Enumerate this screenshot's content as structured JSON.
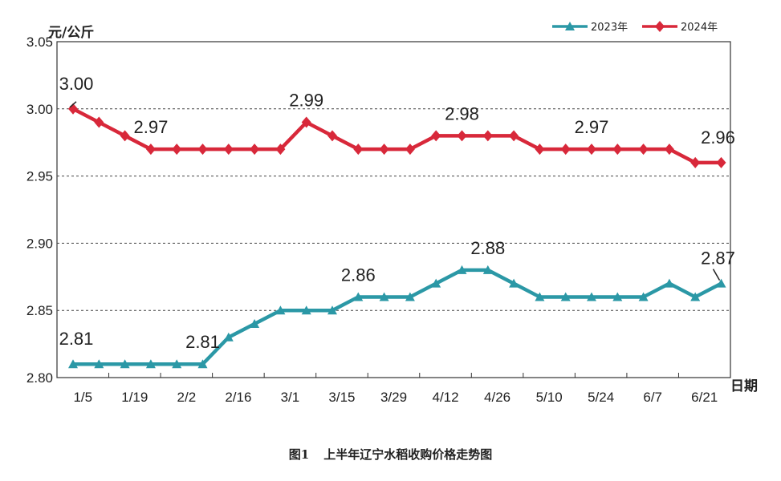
{
  "caption": {
    "number": "图1",
    "title": "上半年辽宁水稻收购价格走势图"
  },
  "chart_data": {
    "type": "line",
    "y_unit_label": "元/公斤",
    "x_unit_label": "日期",
    "ylim": [
      2.8,
      3.05
    ],
    "y_ticks": [
      "2.80",
      "2.85",
      "2.90",
      "2.95",
      "3.00",
      "3.05"
    ],
    "x_tick_labels": [
      "1/5",
      "1/19",
      "2/2",
      "2/16",
      "3/1",
      "3/15",
      "3/29",
      "4/12",
      "4/26",
      "5/10",
      "5/24",
      "6/7",
      "6/21"
    ],
    "grid": "horizontal dashed",
    "legend_position": "top-right",
    "series": [
      {
        "name": "2023年",
        "color": "#2b98a6",
        "marker": "triangle",
        "values": [
          2.81,
          2.81,
          2.81,
          2.81,
          2.81,
          2.81,
          2.83,
          2.84,
          2.85,
          2.85,
          2.85,
          2.86,
          2.86,
          2.86,
          2.87,
          2.88,
          2.88,
          2.87,
          2.86,
          2.86,
          2.86,
          2.86,
          2.86,
          2.87,
          2.86,
          2.87
        ],
        "annotations": [
          {
            "index": 0,
            "text": "2.81"
          },
          {
            "index": 5,
            "text": "2.81"
          },
          {
            "index": 11,
            "text": "2.86"
          },
          {
            "index": 16,
            "text": "2.88"
          },
          {
            "index": 25,
            "text": "2.87"
          }
        ]
      },
      {
        "name": "2024年",
        "color": "#d8283a",
        "marker": "diamond",
        "values": [
          3.0,
          2.99,
          2.98,
          2.97,
          2.97,
          2.97,
          2.97,
          2.97,
          2.97,
          2.99,
          2.98,
          2.97,
          2.97,
          2.97,
          2.98,
          2.98,
          2.98,
          2.98,
          2.97,
          2.97,
          2.97,
          2.97,
          2.97,
          2.97,
          2.96,
          2.96
        ],
        "annotations": [
          {
            "index": 0,
            "text": "3.00"
          },
          {
            "index": 3,
            "text": "2.97"
          },
          {
            "index": 9,
            "text": "2.99"
          },
          {
            "index": 15,
            "text": "2.98"
          },
          {
            "index": 20,
            "text": "2.97"
          },
          {
            "index": 25,
            "text": "2.96"
          }
        ]
      }
    ]
  }
}
